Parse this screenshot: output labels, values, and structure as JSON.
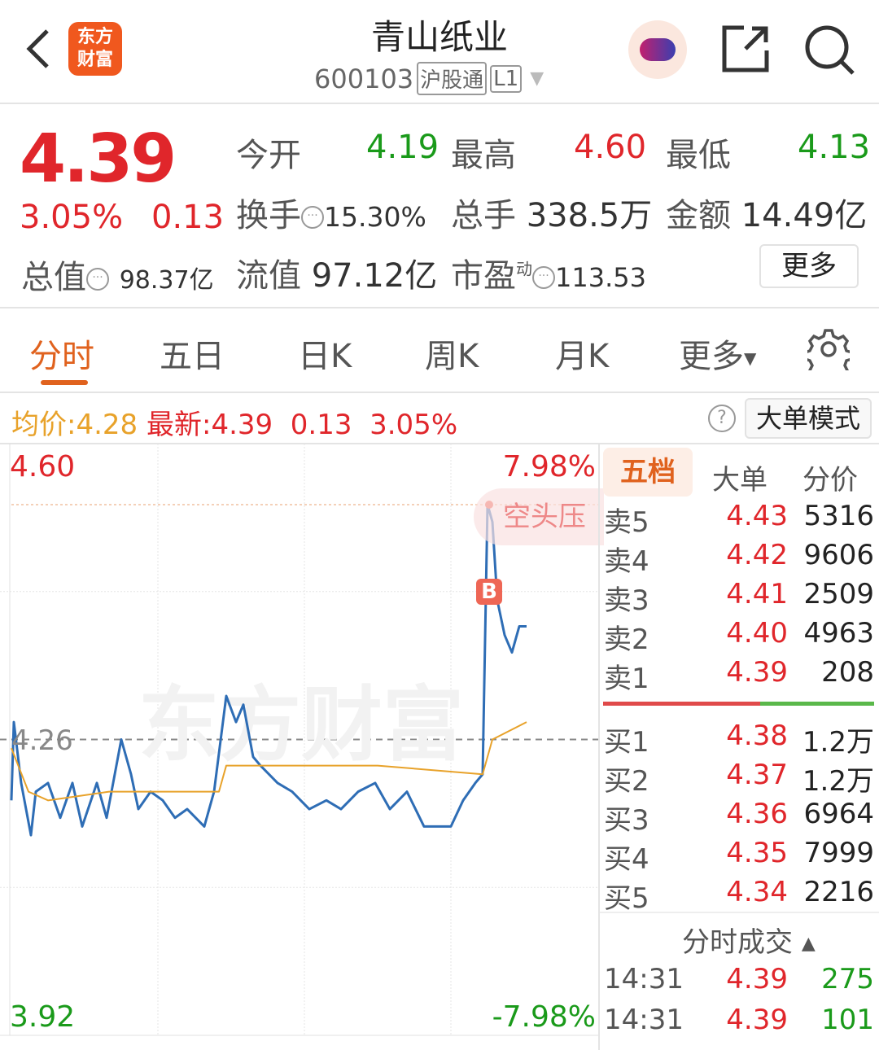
{
  "header": {
    "title": "青山纸业",
    "code": "600103",
    "badge1": "沪股通",
    "badge2": "L1",
    "logo_text": "东方财富"
  },
  "quote": {
    "price": "4.39",
    "change_pct": "3.05%",
    "change": "0.13",
    "open_label": "今开",
    "open": "4.19",
    "high_label": "最高",
    "high": "4.60",
    "low_label": "最低",
    "low": "4.13",
    "turnover_label": "换手",
    "turnover": "15.30%",
    "volume_label": "总手",
    "volume": "338.5万",
    "amount_label": "金额",
    "amount": "14.49亿",
    "mcap_label": "总值",
    "mcap": "98.37亿",
    "float_label": "流值",
    "float": "97.12亿",
    "pe_label": "市盈",
    "pe_sup": "动",
    "pe": "113.53",
    "more": "更多"
  },
  "tabs": [
    "分时",
    "五日",
    "日K",
    "周K",
    "月K",
    "更多"
  ],
  "info": {
    "avg_label": "均价:",
    "avg": "4.28",
    "latest_label": "最新:",
    "latest": "4.39",
    "change": "0.13",
    "pct": "3.05%",
    "mode_button": "大单模式"
  },
  "chart_data": {
    "type": "line",
    "y_top": "4.60",
    "y_mid": "4.26",
    "y_bottom": "3.92",
    "pct_top": "7.98%",
    "pct_bottom": "-7.98%",
    "ylim": [
      3.92,
      4.6
    ],
    "prev_close": 4.26,
    "annotation": "空头压",
    "marker": "B",
    "watermark": "东方财富",
    "series": [
      {
        "color": "#2e6db5",
        "points": [
          [
            0,
            4.19
          ],
          [
            1,
            4.28
          ],
          [
            4,
            4.21
          ],
          [
            8,
            4.15
          ],
          [
            10,
            4.2
          ],
          [
            15,
            4.21
          ],
          [
            20,
            4.17
          ],
          [
            25,
            4.21
          ],
          [
            29,
            4.16
          ],
          [
            35,
            4.21
          ],
          [
            39,
            4.17
          ],
          [
            45,
            4.26
          ],
          [
            49,
            4.22
          ],
          [
            52,
            4.18
          ],
          [
            57,
            4.2
          ],
          [
            62,
            4.19
          ],
          [
            67,
            4.17
          ],
          [
            72,
            4.18
          ],
          [
            79,
            4.16
          ],
          [
            83,
            4.2
          ],
          [
            88,
            4.31
          ],
          [
            92,
            4.28
          ],
          [
            95,
            4.3
          ],
          [
            99,
            4.24
          ],
          [
            102,
            4.23
          ],
          [
            109,
            4.21
          ],
          [
            115,
            4.2
          ],
          [
            122,
            4.18
          ],
          [
            129,
            4.19
          ],
          [
            135,
            4.18
          ],
          [
            142,
            4.2
          ],
          [
            149,
            4.21
          ],
          [
            155,
            4.18
          ],
          [
            162,
            4.2
          ],
          [
            169,
            4.16
          ],
          [
            175,
            4.16
          ],
          [
            180,
            4.16
          ],
          [
            185,
            4.19
          ],
          [
            190,
            4.21
          ],
          [
            193,
            4.22
          ],
          [
            195,
            4.53
          ],
          [
            197,
            4.51
          ],
          [
            199,
            4.42
          ],
          [
            202,
            4.38
          ],
          [
            205,
            4.36
          ],
          [
            208,
            4.39
          ],
          [
            211,
            4.39
          ]
        ]
      },
      {
        "color": "#e8a22a",
        "points": [
          [
            0,
            4.25
          ],
          [
            7,
            4.2
          ],
          [
            15,
            4.19
          ],
          [
            40,
            4.2
          ],
          [
            85,
            4.2
          ],
          [
            88,
            4.23
          ],
          [
            150,
            4.23
          ],
          [
            193,
            4.22
          ],
          [
            197,
            4.26
          ],
          [
            211,
            4.28
          ]
        ]
      }
    ]
  },
  "orderbook": {
    "tabs": [
      "五档",
      "大单",
      "分价"
    ],
    "asks": [
      {
        "l": "卖5",
        "p": "4.43",
        "v": "5316"
      },
      {
        "l": "卖4",
        "p": "4.42",
        "v": "9606"
      },
      {
        "l": "卖3",
        "p": "4.41",
        "v": "2509"
      },
      {
        "l": "卖2",
        "p": "4.40",
        "v": "4963"
      },
      {
        "l": "卖1",
        "p": "4.39",
        "v": "208"
      }
    ],
    "bids": [
      {
        "l": "买1",
        "p": "4.38",
        "v": "1.2万"
      },
      {
        "l": "买2",
        "p": "4.37",
        "v": "1.2万"
      },
      {
        "l": "买3",
        "p": "4.36",
        "v": "6964"
      },
      {
        "l": "买4",
        "p": "4.35",
        "v": "7999"
      },
      {
        "l": "买5",
        "p": "4.34",
        "v": "2216"
      }
    ],
    "ticks_title": "分时成交",
    "ticks": [
      {
        "t": "14:31",
        "p": "4.39",
        "v": "275"
      },
      {
        "t": "14:31",
        "p": "4.39",
        "v": "101"
      }
    ],
    "ratio": 0.58
  }
}
